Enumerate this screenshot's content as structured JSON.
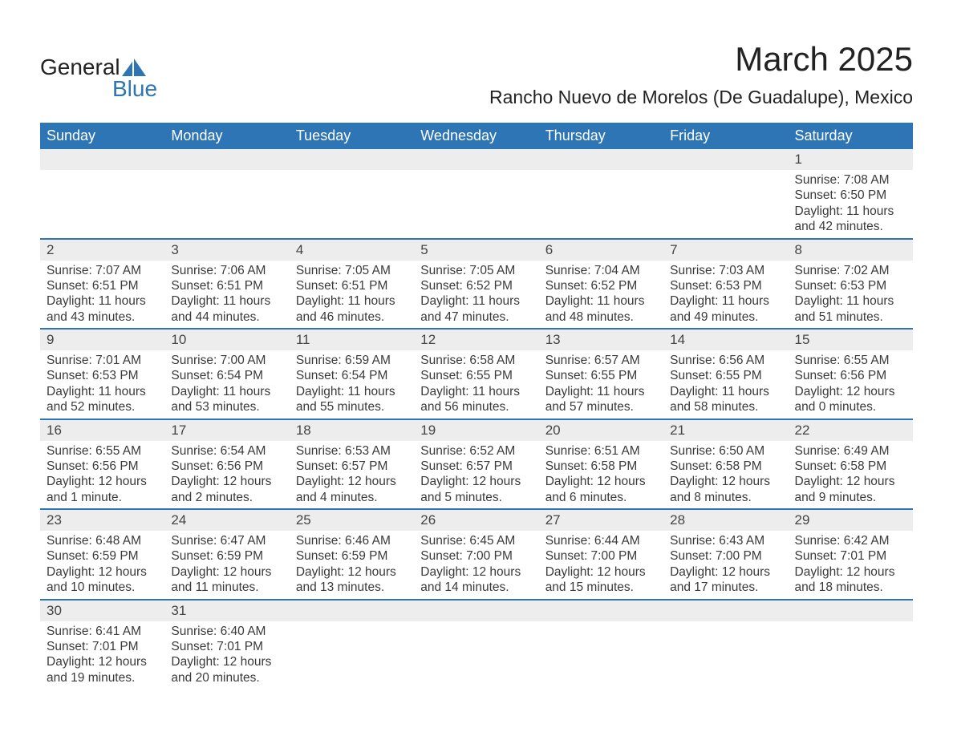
{
  "brand": {
    "line1": "General",
    "line2": "Blue",
    "accent_color": "#2e75b6"
  },
  "title": "March 2025",
  "location": "Rancho Nuevo de Morelos (De Guadalupe), Mexico",
  "calendar": {
    "header_bg": "#2e75b6",
    "header_fg": "#ffffff",
    "row_divider_color": "#2e75b6",
    "daynum_bg": "#ededed",
    "text_color": "#3a3a3a",
    "font_size_body": 15.5,
    "font_size_daynum": 17,
    "font_size_header": 18,
    "columns": [
      "Sunday",
      "Monday",
      "Tuesday",
      "Wednesday",
      "Thursday",
      "Friday",
      "Saturday"
    ],
    "weeks": [
      [
        null,
        null,
        null,
        null,
        null,
        null,
        {
          "day": "1",
          "sunrise": "Sunrise: 7:08 AM",
          "sunset": "Sunset: 6:50 PM",
          "daylight": "Daylight: 11 hours and 42 minutes."
        }
      ],
      [
        {
          "day": "2",
          "sunrise": "Sunrise: 7:07 AM",
          "sunset": "Sunset: 6:51 PM",
          "daylight": "Daylight: 11 hours and 43 minutes."
        },
        {
          "day": "3",
          "sunrise": "Sunrise: 7:06 AM",
          "sunset": "Sunset: 6:51 PM",
          "daylight": "Daylight: 11 hours and 44 minutes."
        },
        {
          "day": "4",
          "sunrise": "Sunrise: 7:05 AM",
          "sunset": "Sunset: 6:51 PM",
          "daylight": "Daylight: 11 hours and 46 minutes."
        },
        {
          "day": "5",
          "sunrise": "Sunrise: 7:05 AM",
          "sunset": "Sunset: 6:52 PM",
          "daylight": "Daylight: 11 hours and 47 minutes."
        },
        {
          "day": "6",
          "sunrise": "Sunrise: 7:04 AM",
          "sunset": "Sunset: 6:52 PM",
          "daylight": "Daylight: 11 hours and 48 minutes."
        },
        {
          "day": "7",
          "sunrise": "Sunrise: 7:03 AM",
          "sunset": "Sunset: 6:53 PM",
          "daylight": "Daylight: 11 hours and 49 minutes."
        },
        {
          "day": "8",
          "sunrise": "Sunrise: 7:02 AM",
          "sunset": "Sunset: 6:53 PM",
          "daylight": "Daylight: 11 hours and 51 minutes."
        }
      ],
      [
        {
          "day": "9",
          "sunrise": "Sunrise: 7:01 AM",
          "sunset": "Sunset: 6:53 PM",
          "daylight": "Daylight: 11 hours and 52 minutes."
        },
        {
          "day": "10",
          "sunrise": "Sunrise: 7:00 AM",
          "sunset": "Sunset: 6:54 PM",
          "daylight": "Daylight: 11 hours and 53 minutes."
        },
        {
          "day": "11",
          "sunrise": "Sunrise: 6:59 AM",
          "sunset": "Sunset: 6:54 PM",
          "daylight": "Daylight: 11 hours and 55 minutes."
        },
        {
          "day": "12",
          "sunrise": "Sunrise: 6:58 AM",
          "sunset": "Sunset: 6:55 PM",
          "daylight": "Daylight: 11 hours and 56 minutes."
        },
        {
          "day": "13",
          "sunrise": "Sunrise: 6:57 AM",
          "sunset": "Sunset: 6:55 PM",
          "daylight": "Daylight: 11 hours and 57 minutes."
        },
        {
          "day": "14",
          "sunrise": "Sunrise: 6:56 AM",
          "sunset": "Sunset: 6:55 PM",
          "daylight": "Daylight: 11 hours and 58 minutes."
        },
        {
          "day": "15",
          "sunrise": "Sunrise: 6:55 AM",
          "sunset": "Sunset: 6:56 PM",
          "daylight": "Daylight: 12 hours and 0 minutes."
        }
      ],
      [
        {
          "day": "16",
          "sunrise": "Sunrise: 6:55 AM",
          "sunset": "Sunset: 6:56 PM",
          "daylight": "Daylight: 12 hours and 1 minute."
        },
        {
          "day": "17",
          "sunrise": "Sunrise: 6:54 AM",
          "sunset": "Sunset: 6:56 PM",
          "daylight": "Daylight: 12 hours and 2 minutes."
        },
        {
          "day": "18",
          "sunrise": "Sunrise: 6:53 AM",
          "sunset": "Sunset: 6:57 PM",
          "daylight": "Daylight: 12 hours and 4 minutes."
        },
        {
          "day": "19",
          "sunrise": "Sunrise: 6:52 AM",
          "sunset": "Sunset: 6:57 PM",
          "daylight": "Daylight: 12 hours and 5 minutes."
        },
        {
          "day": "20",
          "sunrise": "Sunrise: 6:51 AM",
          "sunset": "Sunset: 6:58 PM",
          "daylight": "Daylight: 12 hours and 6 minutes."
        },
        {
          "day": "21",
          "sunrise": "Sunrise: 6:50 AM",
          "sunset": "Sunset: 6:58 PM",
          "daylight": "Daylight: 12 hours and 8 minutes."
        },
        {
          "day": "22",
          "sunrise": "Sunrise: 6:49 AM",
          "sunset": "Sunset: 6:58 PM",
          "daylight": "Daylight: 12 hours and 9 minutes."
        }
      ],
      [
        {
          "day": "23",
          "sunrise": "Sunrise: 6:48 AM",
          "sunset": "Sunset: 6:59 PM",
          "daylight": "Daylight: 12 hours and 10 minutes."
        },
        {
          "day": "24",
          "sunrise": "Sunrise: 6:47 AM",
          "sunset": "Sunset: 6:59 PM",
          "daylight": "Daylight: 12 hours and 11 minutes."
        },
        {
          "day": "25",
          "sunrise": "Sunrise: 6:46 AM",
          "sunset": "Sunset: 6:59 PM",
          "daylight": "Daylight: 12 hours and 13 minutes."
        },
        {
          "day": "26",
          "sunrise": "Sunrise: 6:45 AM",
          "sunset": "Sunset: 7:00 PM",
          "daylight": "Daylight: 12 hours and 14 minutes."
        },
        {
          "day": "27",
          "sunrise": "Sunrise: 6:44 AM",
          "sunset": "Sunset: 7:00 PM",
          "daylight": "Daylight: 12 hours and 15 minutes."
        },
        {
          "day": "28",
          "sunrise": "Sunrise: 6:43 AM",
          "sunset": "Sunset: 7:00 PM",
          "daylight": "Daylight: 12 hours and 17 minutes."
        },
        {
          "day": "29",
          "sunrise": "Sunrise: 6:42 AM",
          "sunset": "Sunset: 7:01 PM",
          "daylight": "Daylight: 12 hours and 18 minutes."
        }
      ],
      [
        {
          "day": "30",
          "sunrise": "Sunrise: 6:41 AM",
          "sunset": "Sunset: 7:01 PM",
          "daylight": "Daylight: 12 hours and 19 minutes."
        },
        {
          "day": "31",
          "sunrise": "Sunrise: 6:40 AM",
          "sunset": "Sunset: 7:01 PM",
          "daylight": "Daylight: 12 hours and 20 minutes."
        },
        null,
        null,
        null,
        null,
        null
      ]
    ]
  }
}
